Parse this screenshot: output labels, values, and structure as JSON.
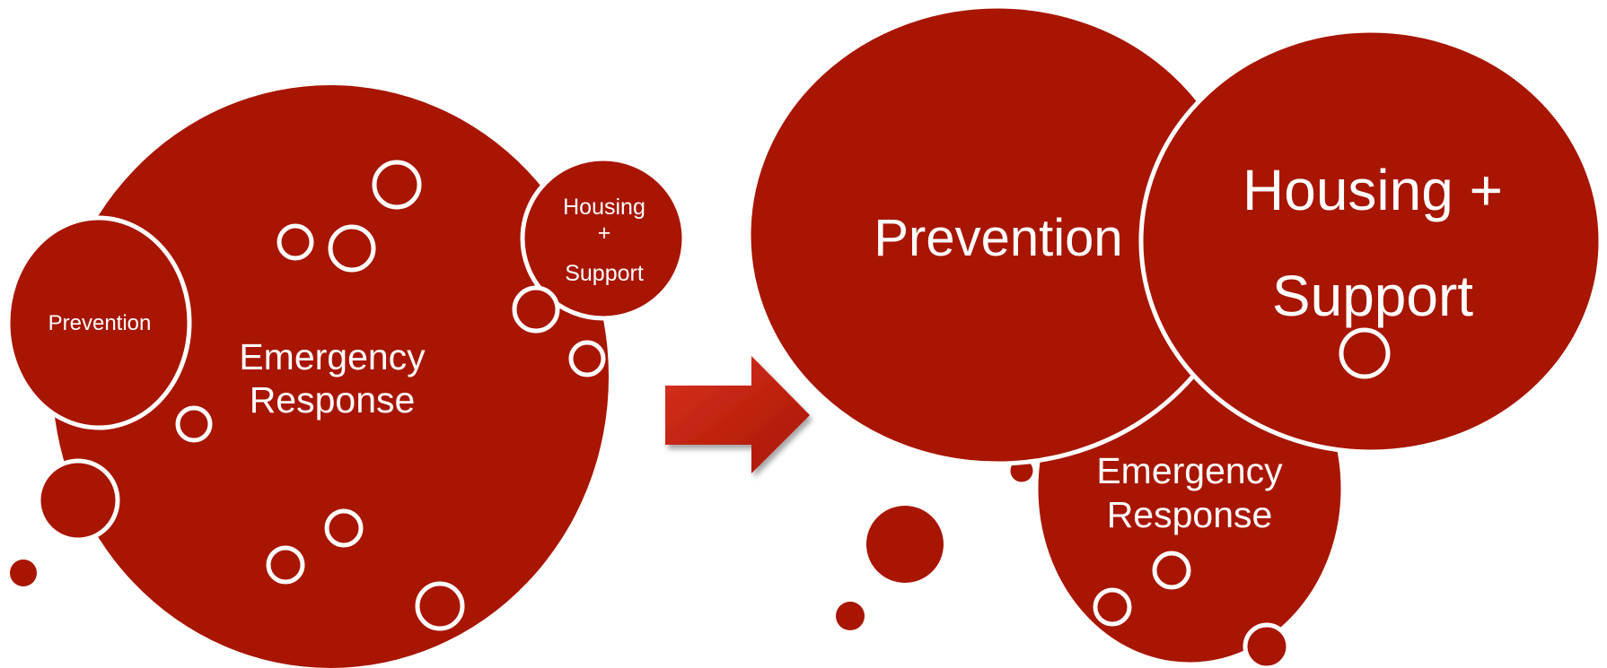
{
  "colors": {
    "circle_fill": "#a81500",
    "outline": "#ffffff",
    "arrow_fill": "#c21f12",
    "background": "#ffffff"
  },
  "before": {
    "emergency_response": {
      "line1": "Emergency",
      "line2": "Response"
    },
    "prevention": {
      "label": "Prevention"
    },
    "housing_support": {
      "line1": "Housing",
      "line2": "+",
      "line3": "Support"
    }
  },
  "after": {
    "prevention": {
      "label": "Prevention"
    },
    "housing_support": {
      "line1": "Housing +",
      "line2": "Support"
    },
    "emergency_response": {
      "line1": "Emergency",
      "line2": "Response"
    }
  },
  "arrow": {
    "icon": "right-arrow-icon"
  }
}
